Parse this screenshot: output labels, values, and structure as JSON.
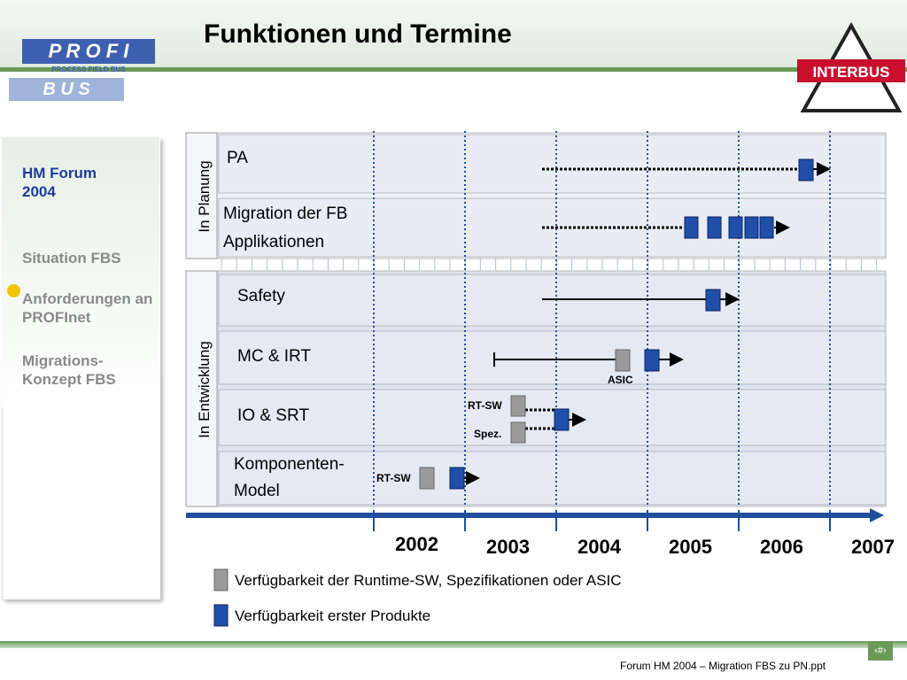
{
  "header": {
    "title": "Funktionen und Termine",
    "logo_left": {
      "top": "P R O F I",
      "middle": "PROCESS FIELD BUS",
      "bottom": "B U S"
    },
    "logo_right": "INTERBUS"
  },
  "sidebar": {
    "heading": "HM Forum 2004",
    "items": [
      "Situation FBS",
      "Anforderungen an PROFInet",
      "Migrations-Konzept FBS"
    ]
  },
  "diagram": {
    "groups": [
      "In Planung",
      "In Entwicklung"
    ],
    "rows": [
      {
        "label": "PA"
      },
      {
        "label": "Migration der FB Applikationen"
      },
      {
        "label": "Safety"
      },
      {
        "label": "MC & IRT",
        "notes": [
          "ASIC"
        ]
      },
      {
        "label": "IO & SRT",
        "notes": [
          "RT-SW",
          "Spez."
        ]
      },
      {
        "label": "Komponenten-Model",
        "notes": [
          "RT-SW"
        ]
      }
    ],
    "years": [
      "2002",
      "2003",
      "2004",
      "2005",
      "2006",
      "2007"
    ]
  },
  "legend": [
    "Verfügbarkeit der Runtime-SW, Spezifikationen oder ASIC",
    "Verfügbarkeit erster Produkte"
  ],
  "footer": {
    "text": "Forum HM 2004 – Migration FBS zu PN.ppt",
    "page": "‹#›"
  }
}
